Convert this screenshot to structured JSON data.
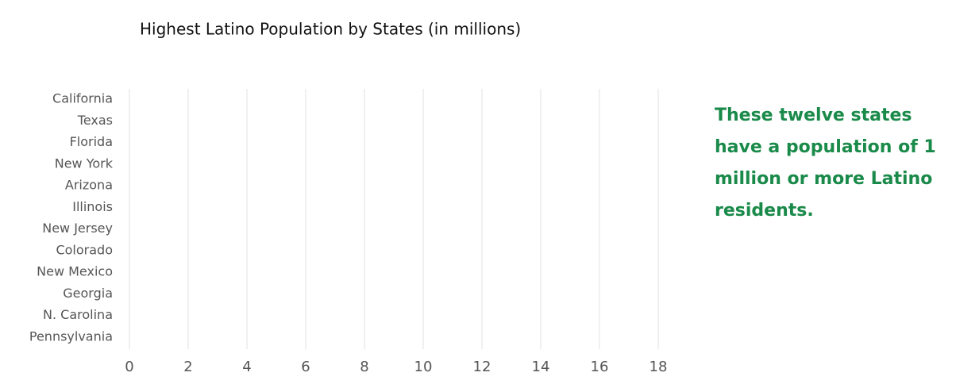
{
  "chart_data": {
    "type": "bar",
    "orientation": "horizontal",
    "title": "Highest Latino Population by States (in millions)",
    "categories": [
      "California",
      "Texas",
      "Florida",
      "New York",
      "Arizona",
      "Illinois",
      "New Jersey",
      "Colorado",
      "New Mexico",
      "Georgia",
      "N. Carolina",
      "Pennsylvania"
    ],
    "xlim": [
      0,
      18
    ],
    "xticks": [
      0,
      2,
      4,
      6,
      8,
      10,
      12,
      14,
      16,
      18
    ],
    "grid": true,
    "annotation": "These twelve states have a population of 1 million or more Latino residents.",
    "annotation_color": "#1a8a4a"
  }
}
